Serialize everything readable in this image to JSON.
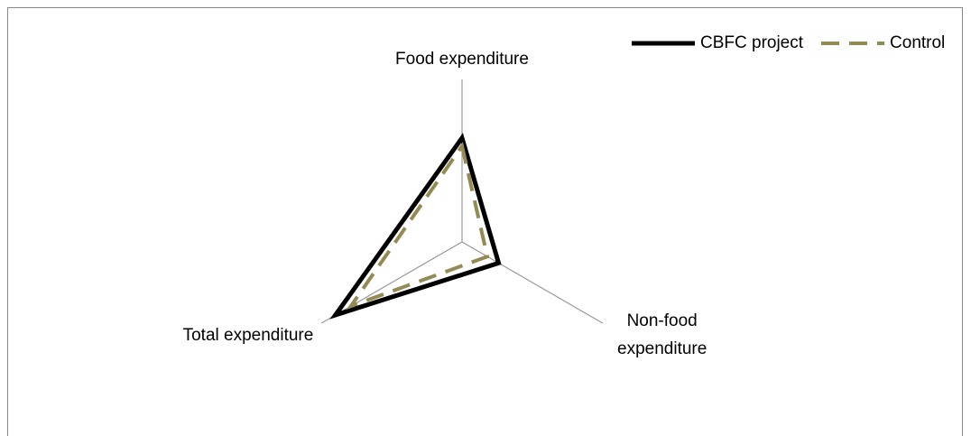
{
  "chart_data": {
    "type": "radar",
    "categories": [
      "Food expenditure",
      "Non-food expenditure",
      "Total expenditure"
    ],
    "rlim": [
      0,
      1
    ],
    "series": [
      {
        "name": "CBFC project",
        "color": "#000000",
        "dash": "solid",
        "values": [
          0.64,
          0.26,
          0.9
        ]
      },
      {
        "name": "Control",
        "color": "#948a54",
        "dash": "dashed",
        "values": [
          0.59,
          0.18,
          0.79
        ]
      }
    ],
    "legend": "top-right"
  }
}
